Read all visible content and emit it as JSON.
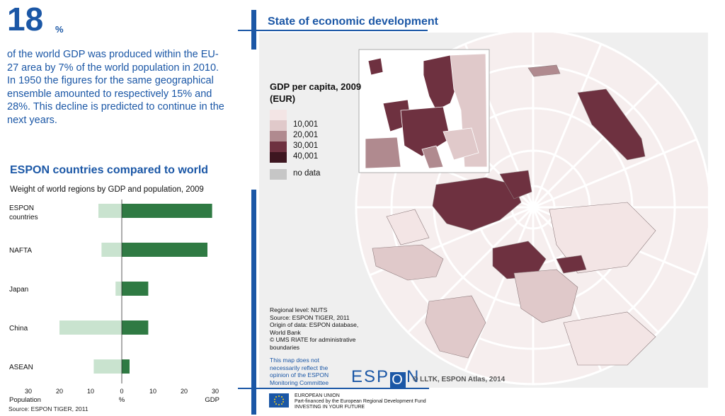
{
  "headline": {
    "number": "18",
    "unit": "%",
    "text": "of the world GDP was produced within the EU-27 area by 7% of the world population in 2010. In 1950 the figures for the same geographical ensemble amounted to respectively 15% and 28%. This decline is predicted to continue in the next years."
  },
  "chart_section": {
    "title": "ESPON countries compared to world",
    "source": "Source: ESPON TIGER, 2011"
  },
  "chart_data": {
    "type": "bar",
    "orientation": "horizontal-diverging",
    "title": "Weight of world regions by GDP and population, 2009",
    "categories": [
      "ESPON\ncountries",
      "NAFTA",
      "Japan",
      "China",
      "ASEAN"
    ],
    "series": [
      {
        "name": "Population",
        "values": [
          7.5,
          6.5,
          2,
          20,
          9
        ],
        "color": "#c9e3cf",
        "side": "left"
      },
      {
        "name": "GDP",
        "values": [
          29,
          27.5,
          8.5,
          8.5,
          2.5
        ],
        "color": "#2f7a43",
        "side": "right"
      }
    ],
    "ticks": [
      "30",
      "20",
      "10",
      "0",
      "10",
      "20",
      "30"
    ],
    "xlabel_left": "Population",
    "xlabel_center": "%",
    "xlabel_right": "GDP",
    "xlim": [
      -30,
      30
    ]
  },
  "map": {
    "title": "State of economic development",
    "legend_title": "GDP per capita, 2009 (EUR)",
    "legend": [
      {
        "label": "",
        "color": "#f3e5e5"
      },
      {
        "label": "10,001",
        "color": "#e0c9ca"
      },
      {
        "label": "20,001",
        "color": "#b08a8f"
      },
      {
        "label": "30,001",
        "color": "#6e3140"
      },
      {
        "label": "40,001",
        "color": "#3d1620"
      }
    ],
    "no_data": {
      "label": "no data",
      "color": "#c6c6c6"
    },
    "credits": "Regional level: NUTS\nSource: ESPON TIGER, 2011\nOrigin of data: ESPON database, World Bank\n© UMS RIATE for administrative boundaries",
    "disclaimer": "This map does not necessarily reflect the opinion of the ESPON Monitoring Committee",
    "copyright": "© LLTK, ESPON Atlas, 2014"
  },
  "logo": {
    "left": "ESP",
    "box": "O",
    "right": "N"
  },
  "footer": {
    "line1": "EUROPEAN UNION",
    "line2": "Part-financed by the European Regional Development Fund",
    "line3": "INVESTING IN YOUR FUTURE"
  },
  "colors": {
    "accent": "#1b57a6",
    "gdp_bar": "#2f7a43",
    "population_bar": "#c9e3cf",
    "map_bg": "#efefef",
    "globe": "#f6eeee"
  }
}
